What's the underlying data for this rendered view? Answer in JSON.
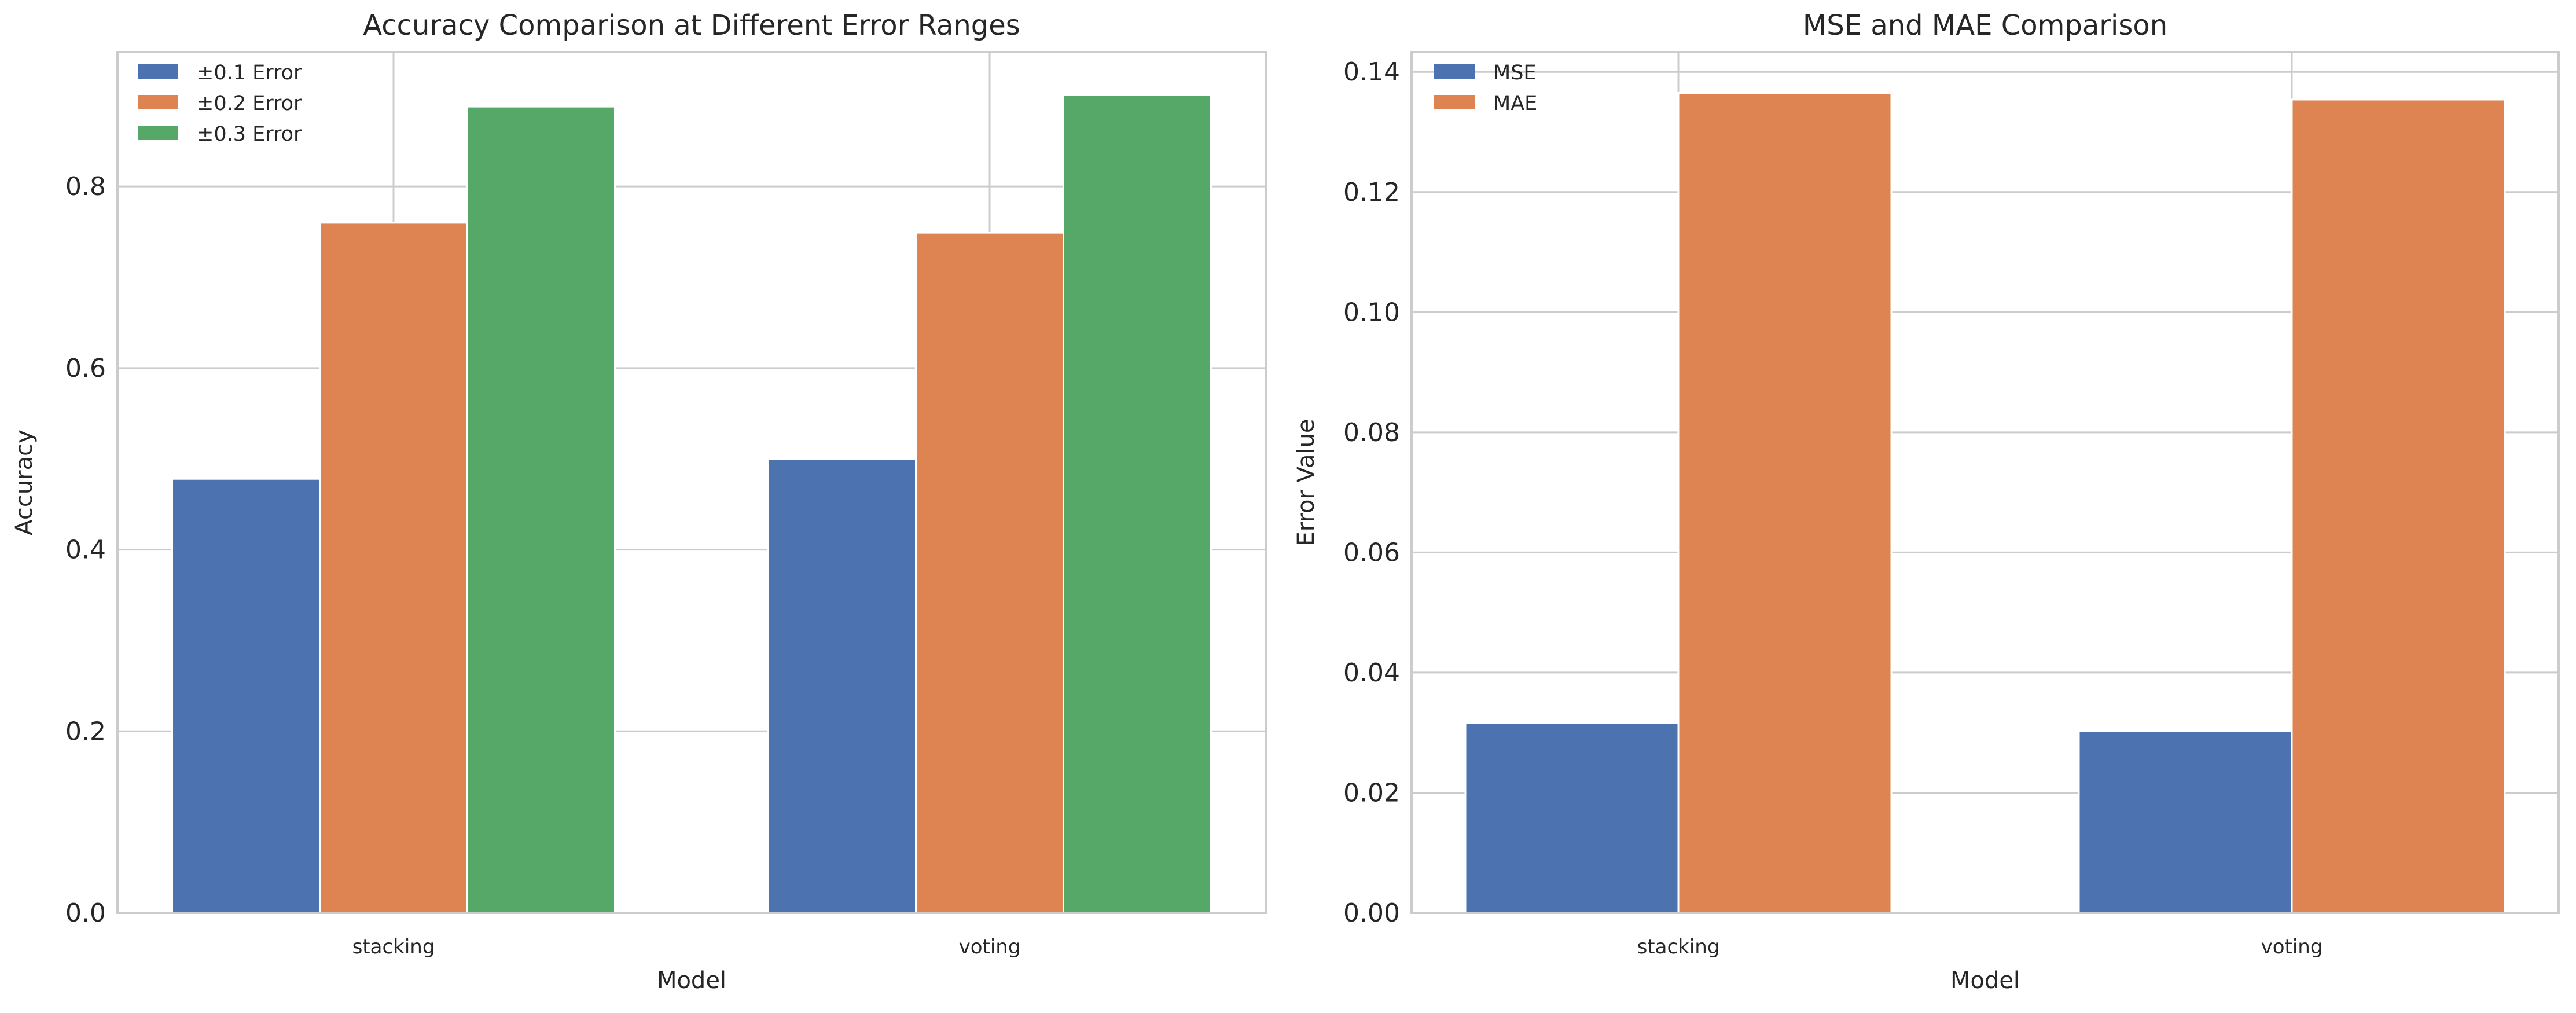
{
  "chart_data": [
    {
      "type": "bar",
      "title": "Accuracy Comparison at Different Error Ranges",
      "xlabel": "Model",
      "ylabel": "Accuracy",
      "categories": [
        "stacking",
        "voting"
      ],
      "series": [
        {
          "name": "±0.1 Error",
          "values": [
            0.478,
            0.5
          ],
          "color": "#4c72b0"
        },
        {
          "name": "±0.2 Error",
          "values": [
            0.76,
            0.749
          ],
          "color": "#dd8452"
        },
        {
          "name": "±0.3 Error",
          "values": [
            0.888,
            0.901
          ],
          "color": "#55a868"
        }
      ],
      "ylim": [
        0,
        0.948
      ],
      "yticks": [
        "0.0",
        "0.2",
        "0.4",
        "0.6",
        "0.8"
      ],
      "ytick_values": [
        0,
        0.2,
        0.4,
        0.6,
        0.8
      ],
      "grid": true,
      "legend_position": "top-left"
    },
    {
      "type": "bar",
      "title": "MSE and MAE Comparison",
      "xlabel": "Model",
      "ylabel": "Error Value",
      "categories": [
        "stacking",
        "voting"
      ],
      "series": [
        {
          "name": "MSE",
          "values": [
            0.0316,
            0.0303
          ],
          "color": "#4c72b0"
        },
        {
          "name": "MAE",
          "values": [
            0.1365,
            0.1354
          ],
          "color": "#dd8452"
        }
      ],
      "ylim": [
        0,
        0.1433
      ],
      "yticks": [
        "0.00",
        "0.02",
        "0.04",
        "0.06",
        "0.08",
        "0.10",
        "0.12",
        "0.14"
      ],
      "ytick_values": [
        0,
        0.02,
        0.04,
        0.06,
        0.08,
        0.1,
        0.12,
        0.14
      ],
      "grid": true,
      "legend_position": "top-left"
    }
  ]
}
